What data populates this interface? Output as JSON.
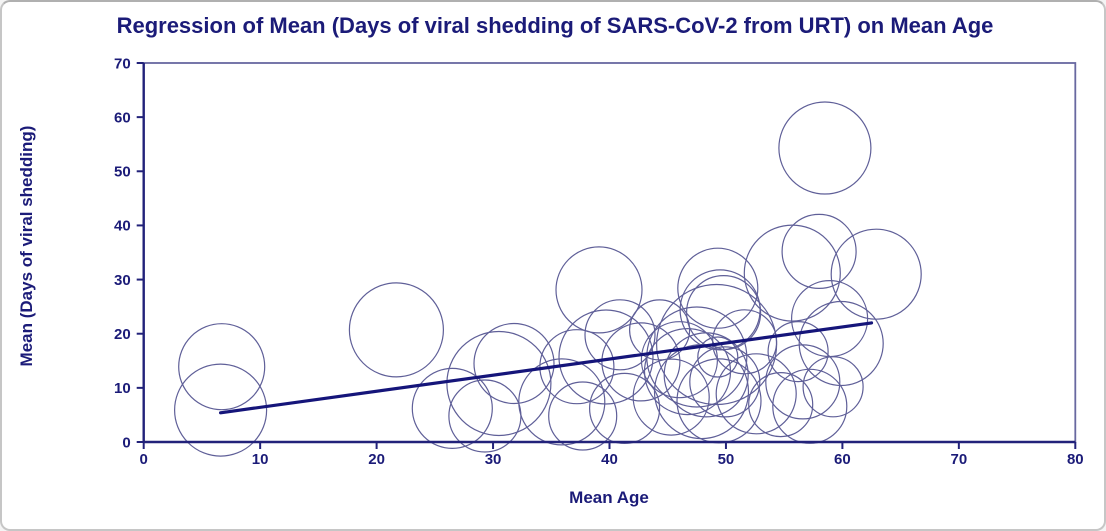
{
  "window": {
    "background": "#ffffff",
    "border_color": "#c6c6c6"
  },
  "colors": {
    "title_text": "#1b1b78",
    "axis_line": "#22227a",
    "frame_line": "#6868a0",
    "tick_text": "#1b1b78",
    "bubble_stroke": "#5f5f98",
    "regression_line": "#15157a"
  },
  "chart_data": {
    "type": "scatter",
    "subtype": "bubble",
    "title": "Regression of Mean (Days of viral shedding of SARS-CoV-2 from URT) on Mean Age",
    "xlabel": "Mean Age",
    "ylabel": "Mean (Days of viral shedding)",
    "xlim": [
      0,
      80
    ],
    "ylim": [
      0,
      70
    ],
    "x_ticks": [
      0,
      10,
      20,
      30,
      40,
      50,
      60,
      70,
      80
    ],
    "y_ticks": [
      0,
      10,
      20,
      30,
      40,
      50,
      60,
      70
    ],
    "grid": false,
    "legend": false,
    "regression_line": {
      "x_start": 6.6,
      "y_start": 5.4,
      "x_end": 62.5,
      "y_end": 22.0
    },
    "bubbles": [
      {
        "x": 6.7,
        "y": 13.9,
        "r": 43
      },
      {
        "x": 6.6,
        "y": 5.9,
        "r": 46
      },
      {
        "x": 21.7,
        "y": 20.7,
        "r": 47
      },
      {
        "x": 26.5,
        "y": 6.2,
        "r": 40
      },
      {
        "x": 29.3,
        "y": 4.8,
        "r": 36
      },
      {
        "x": 30.5,
        "y": 10.8,
        "r": 52
      },
      {
        "x": 31.8,
        "y": 14.5,
        "r": 40
      },
      {
        "x": 35.9,
        "y": 7.4,
        "r": 43
      },
      {
        "x": 37.2,
        "y": 13.9,
        "r": 37
      },
      {
        "x": 37.7,
        "y": 4.8,
        "r": 34
      },
      {
        "x": 39.1,
        "y": 28.1,
        "r": 43
      },
      {
        "x": 39.7,
        "y": 15.7,
        "r": 47
      },
      {
        "x": 40.9,
        "y": 19.8,
        "r": 35
      },
      {
        "x": 41.3,
        "y": 6.2,
        "r": 35
      },
      {
        "x": 42.7,
        "y": 14.8,
        "r": 39
      },
      {
        "x": 44.3,
        "y": 20.7,
        "r": 30
      },
      {
        "x": 45.3,
        "y": 8.3,
        "r": 38
      },
      {
        "x": 46.0,
        "y": 15.2,
        "r": 38
      },
      {
        "x": 46.7,
        "y": 13.0,
        "r": 43
      },
      {
        "x": 47.5,
        "y": 15.7,
        "r": 50
      },
      {
        "x": 47.9,
        "y": 9.3,
        "r": 47
      },
      {
        "x": 48.3,
        "y": 12.4,
        "r": 42
      },
      {
        "x": 49.2,
        "y": 18.0,
        "r": 60
      },
      {
        "x": 49.3,
        "y": 28.4,
        "r": 40
      },
      {
        "x": 49.3,
        "y": 15.7,
        "r": 20
      },
      {
        "x": 49.4,
        "y": 7.6,
        "r": 42
      },
      {
        "x": 49.9,
        "y": 11.1,
        "r": 35
      },
      {
        "x": 49.5,
        "y": 24.4,
        "r": 40
      },
      {
        "x": 49.8,
        "y": 23.9,
        "r": 37
      },
      {
        "x": 51.6,
        "y": 18.5,
        "r": 32
      },
      {
        "x": 52.6,
        "y": 8.9,
        "r": 40
      },
      {
        "x": 54.7,
        "y": 6.9,
        "r": 32
      },
      {
        "x": 55.7,
        "y": 31.2,
        "r": 48
      },
      {
        "x": 56.2,
        "y": 16.7,
        "r": 30
      },
      {
        "x": 56.6,
        "y": 11.1,
        "r": 37
      },
      {
        "x": 57.2,
        "y": 6.6,
        "r": 37
      },
      {
        "x": 58.0,
        "y": 35.2,
        "r": 37
      },
      {
        "x": 58.5,
        "y": 54.3,
        "r": 46
      },
      {
        "x": 58.9,
        "y": 22.8,
        "r": 38
      },
      {
        "x": 59.2,
        "y": 10.2,
        "r": 30
      },
      {
        "x": 59.9,
        "y": 18.2,
        "r": 42
      },
      {
        "x": 62.9,
        "y": 31.0,
        "r": 45
      }
    ]
  }
}
